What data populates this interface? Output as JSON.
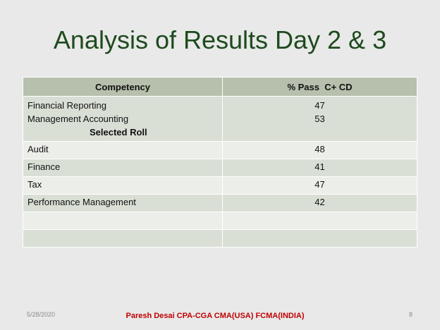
{
  "title": "Analysis of Results Day 2 & 3",
  "table": {
    "header": [
      "Competency",
      "% Pass  C+ CD"
    ],
    "rows": [
      [
        [
          "Financial Reporting",
          "Management Accounting",
          "Selected Roll"
        ],
        [
          47,
          53
        ]
      ],
      [
        "Audit",
        48
      ],
      [
        "Finance",
        41
      ],
      [
        "Tax",
        47
      ],
      [
        "Performance Management",
        42
      ]
    ]
  },
  "footer": {
    "date": "5/28/2020",
    "author": "Paresh Desai CPA-CGA CMA(USA) FCMA(INDIA)",
    "page": 8
  }
}
